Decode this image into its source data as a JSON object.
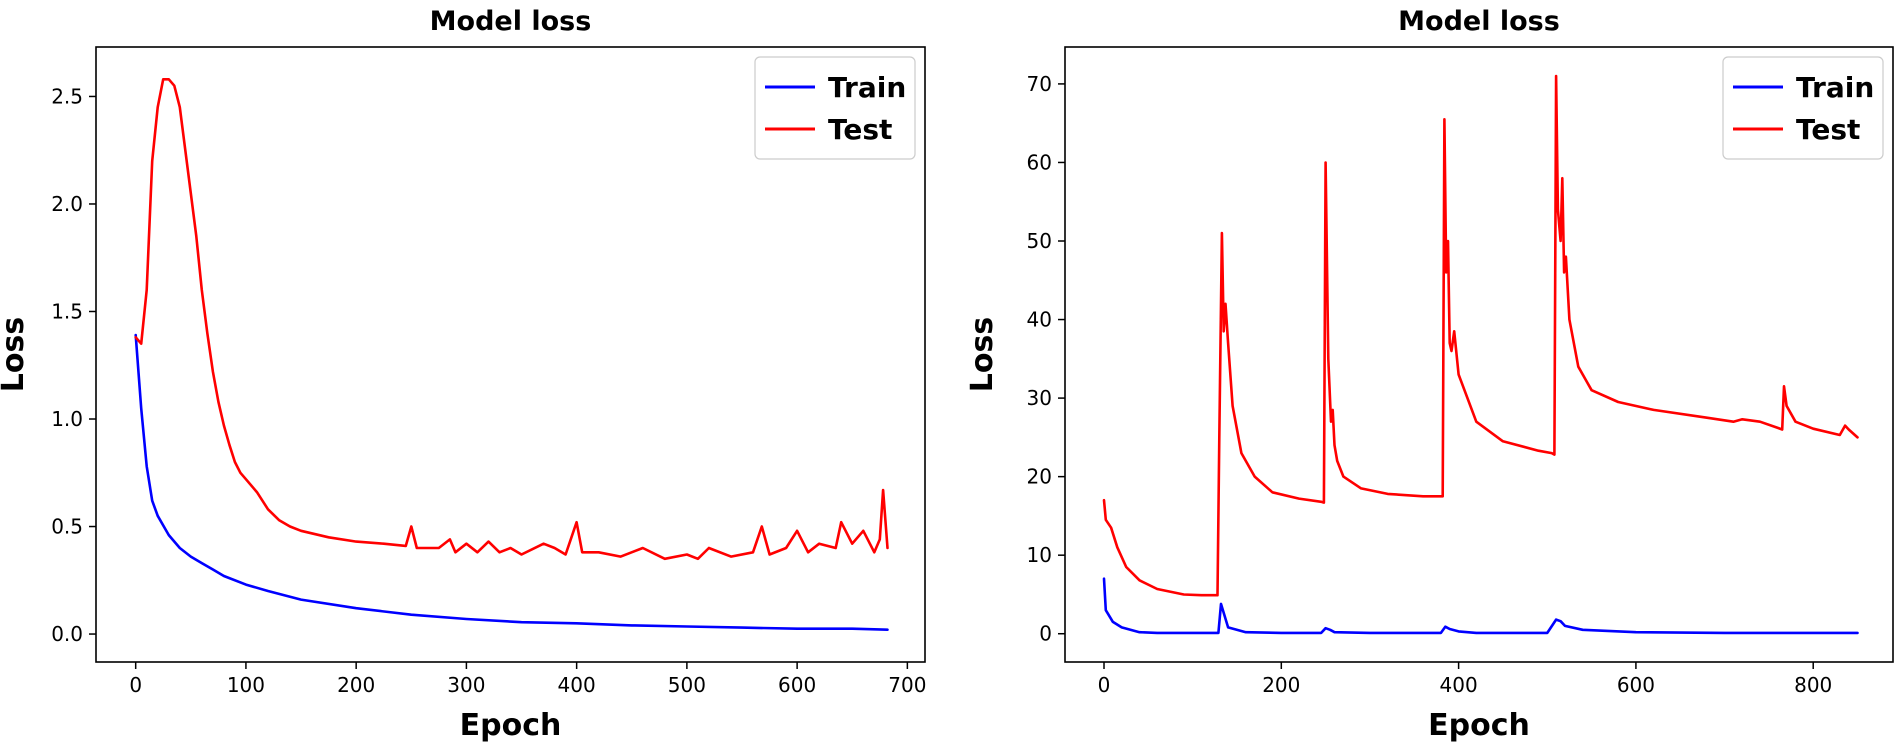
{
  "chart_data": [
    {
      "type": "line",
      "title": "Model loss",
      "xlabel": "Epoch",
      "ylabel": "Loss",
      "xlim": [
        -36,
        716
      ],
      "ylim": [
        -0.13,
        2.73
      ],
      "xticks": [
        0,
        100,
        200,
        300,
        400,
        500,
        600,
        700
      ],
      "yticks": [
        0.0,
        0.5,
        1.0,
        1.5,
        2.0,
        2.5
      ],
      "ytick_decimals": 1,
      "grid": false,
      "legend_position": "top-right",
      "series": [
        {
          "name": "Train",
          "color": "#0000ff",
          "x": [
            0,
            5,
            10,
            15,
            20,
            30,
            40,
            50,
            60,
            70,
            80,
            100,
            120,
            150,
            200,
            250,
            300,
            350,
            400,
            450,
            500,
            550,
            600,
            650,
            682
          ],
          "y": [
            1.39,
            1.05,
            0.78,
            0.62,
            0.55,
            0.46,
            0.4,
            0.36,
            0.33,
            0.3,
            0.27,
            0.23,
            0.2,
            0.16,
            0.12,
            0.09,
            0.07,
            0.055,
            0.05,
            0.04,
            0.035,
            0.03,
            0.025,
            0.025,
            0.02
          ]
        },
        {
          "name": "Test",
          "color": "#ff0000",
          "x": [
            0,
            5,
            10,
            15,
            20,
            25,
            30,
            35,
            40,
            45,
            50,
            55,
            60,
            65,
            70,
            75,
            80,
            85,
            90,
            95,
            100,
            110,
            120,
            130,
            140,
            150,
            175,
            200,
            225,
            245,
            250,
            255,
            275,
            285,
            290,
            300,
            310,
            320,
            330,
            340,
            350,
            370,
            380,
            390,
            400,
            405,
            420,
            440,
            460,
            480,
            500,
            510,
            520,
            540,
            560,
            568,
            575,
            590,
            600,
            610,
            620,
            635,
            640,
            650,
            660,
            670,
            675,
            678,
            682
          ],
          "y": [
            1.38,
            1.35,
            1.6,
            2.2,
            2.45,
            2.58,
            2.58,
            2.55,
            2.45,
            2.25,
            2.05,
            1.85,
            1.6,
            1.4,
            1.22,
            1.08,
            0.97,
            0.88,
            0.8,
            0.75,
            0.72,
            0.66,
            0.58,
            0.53,
            0.5,
            0.48,
            0.45,
            0.43,
            0.42,
            0.41,
            0.5,
            0.4,
            0.4,
            0.44,
            0.38,
            0.42,
            0.38,
            0.43,
            0.38,
            0.4,
            0.37,
            0.42,
            0.4,
            0.37,
            0.52,
            0.38,
            0.38,
            0.36,
            0.4,
            0.35,
            0.37,
            0.35,
            0.4,
            0.36,
            0.38,
            0.5,
            0.37,
            0.4,
            0.48,
            0.38,
            0.42,
            0.4,
            0.52,
            0.42,
            0.48,
            0.38,
            0.44,
            0.67,
            0.4
          ]
        }
      ]
    },
    {
      "type": "line",
      "title": "Model loss",
      "xlabel": "Epoch",
      "ylabel": "Loss",
      "xlim": [
        -44,
        890
      ],
      "ylim": [
        -3.6,
        74.7
      ],
      "xticks": [
        0,
        200,
        400,
        600,
        800
      ],
      "yticks": [
        0,
        10,
        20,
        30,
        40,
        50,
        60,
        70
      ],
      "ytick_decimals": 0,
      "grid": false,
      "legend_position": "top-right",
      "series": [
        {
          "name": "Train",
          "color": "#0000ff",
          "x": [
            0,
            2,
            10,
            20,
            40,
            60,
            80,
            100,
            129,
            132,
            140,
            160,
            200,
            245,
            250,
            255,
            260,
            300,
            380,
            385,
            390,
            400,
            420,
            500,
            510,
            515,
            520,
            540,
            600,
            700,
            800,
            850
          ],
          "y": [
            7.0,
            3.0,
            1.5,
            0.8,
            0.2,
            0.1,
            0.1,
            0.1,
            0.1,
            3.8,
            0.8,
            0.2,
            0.1,
            0.1,
            0.7,
            0.5,
            0.2,
            0.1,
            0.1,
            0.9,
            0.6,
            0.3,
            0.1,
            0.1,
            1.8,
            1.6,
            1.0,
            0.5,
            0.2,
            0.1,
            0.1,
            0.1
          ]
        },
        {
          "name": "Test",
          "color": "#ff0000",
          "x": [
            0,
            2,
            8,
            15,
            25,
            40,
            60,
            90,
            110,
            128,
            130,
            133,
            135,
            137,
            140,
            145,
            155,
            170,
            190,
            220,
            245,
            248,
            250,
            253,
            256,
            258,
            260,
            263,
            270,
            290,
            320,
            360,
            380,
            382,
            384,
            386,
            388,
            390,
            392,
            395,
            400,
            420,
            450,
            490,
            505,
            508,
            510,
            512,
            515,
            517,
            519,
            521,
            525,
            535,
            550,
            580,
            620,
            680,
            710,
            720,
            740,
            760,
            765,
            767,
            770,
            780,
            800,
            830,
            836,
            840,
            850
          ],
          "y": [
            17,
            14.5,
            13.5,
            11,
            8.5,
            6.8,
            5.7,
            5.0,
            4.9,
            4.9,
            25,
            51,
            38.5,
            42,
            37,
            29,
            23,
            20,
            18,
            17.2,
            16.8,
            16.7,
            60,
            35,
            27,
            28.5,
            24,
            22,
            20,
            18.5,
            17.8,
            17.5,
            17.5,
            17.5,
            65.5,
            46,
            50,
            37,
            36,
            38.5,
            33,
            27,
            24.5,
            23.3,
            23.0,
            22.8,
            71,
            54,
            50,
            58,
            46,
            48,
            40,
            34,
            31,
            29.5,
            28.5,
            27.5,
            27,
            27.3,
            27,
            26.2,
            26.0,
            31.5,
            29,
            27,
            26.1,
            25.3,
            26.5,
            26,
            25
          ]
        }
      ]
    }
  ]
}
